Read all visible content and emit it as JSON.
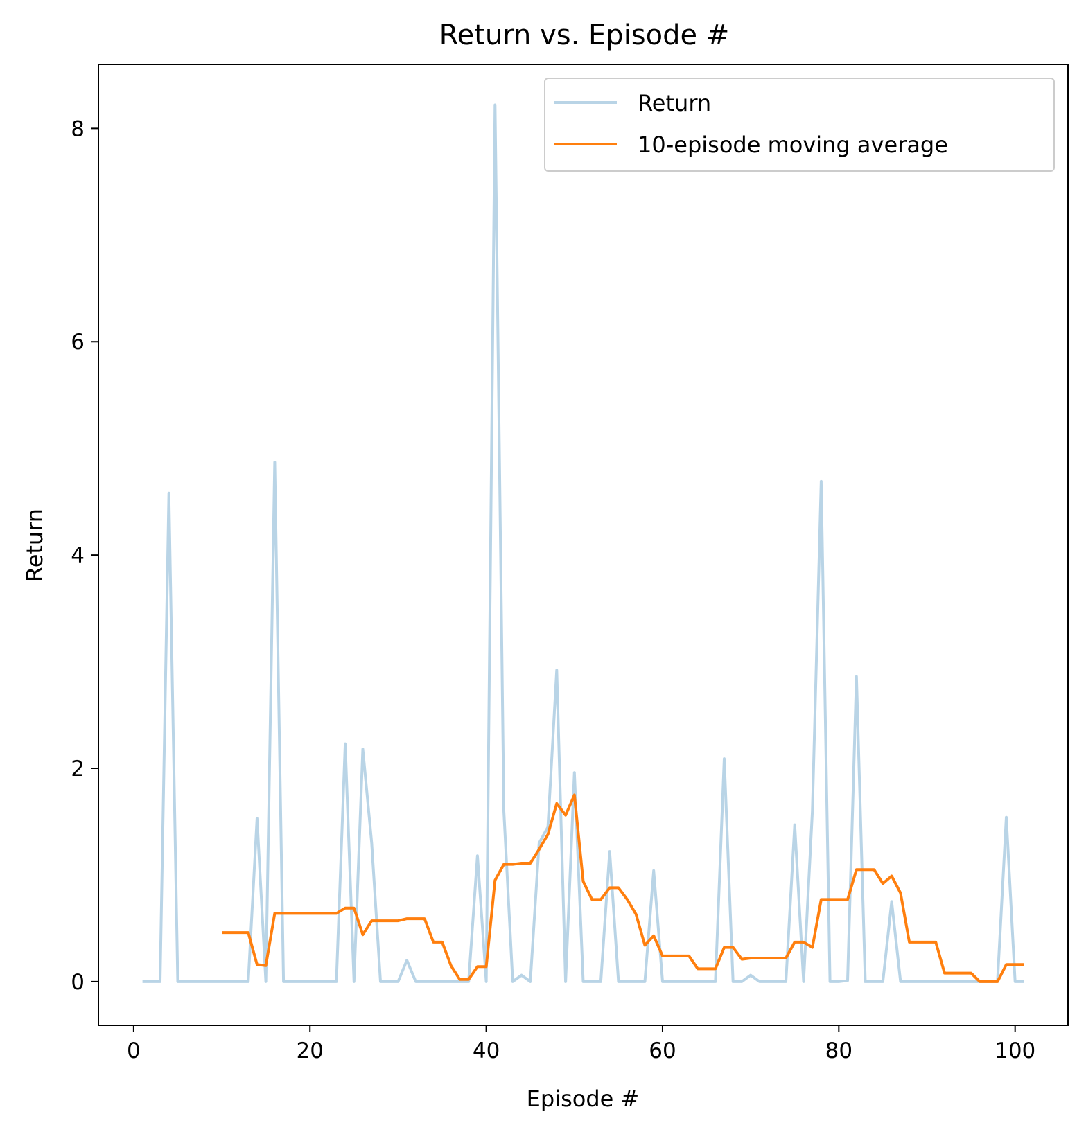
{
  "chart_data": {
    "type": "line",
    "title": "Return vs. Episode #",
    "xlabel": "Episode #",
    "ylabel": "Return",
    "xlim": [
      -4,
      106
    ],
    "ylim": [
      -0.41,
      8.6
    ],
    "xticks": [
      0,
      20,
      40,
      60,
      80,
      100
    ],
    "yticks": [
      0,
      2,
      4,
      6,
      8
    ],
    "grid": false,
    "legend_position": "top-right",
    "series": [
      {
        "name": "Return",
        "color": "#b9d4e6",
        "x": [
          1,
          2,
          3,
          4,
          5,
          6,
          7,
          8,
          9,
          10,
          11,
          12,
          13,
          14,
          15,
          16,
          17,
          18,
          19,
          20,
          21,
          22,
          23,
          24,
          25,
          26,
          27,
          28,
          29,
          30,
          31,
          32,
          33,
          34,
          35,
          36,
          37,
          38,
          39,
          40,
          41,
          42,
          43,
          44,
          45,
          46,
          47,
          48,
          49,
          50,
          51,
          52,
          53,
          54,
          55,
          56,
          57,
          58,
          59,
          60,
          61,
          62,
          63,
          64,
          65,
          66,
          67,
          68,
          69,
          70,
          71,
          72,
          73,
          74,
          75,
          76,
          77,
          78,
          79,
          80,
          81,
          82,
          83,
          84,
          85,
          86,
          87,
          88,
          89,
          90,
          91,
          92,
          93,
          94,
          95,
          96,
          97,
          98,
          99,
          100,
          101
        ],
        "values": [
          0,
          0,
          0,
          4.58,
          0,
          0,
          0,
          0,
          0,
          0,
          0,
          0,
          0,
          1.53,
          0,
          4.87,
          0,
          0,
          0,
          0,
          0,
          0,
          0,
          2.23,
          0,
          2.18,
          1.3,
          0,
          0,
          0,
          0.2,
          0,
          0,
          0,
          0,
          0,
          0,
          0,
          1.18,
          0,
          8.22,
          1.6,
          0,
          0.06,
          0,
          1.3,
          1.45,
          2.92,
          0,
          1.96,
          0,
          0,
          0,
          1.22,
          0,
          0,
          0,
          0,
          1.04,
          0,
          0,
          0,
          0,
          0,
          0,
          0,
          2.09,
          0,
          0,
          0.06,
          0,
          0,
          0,
          0,
          1.47,
          0,
          1.6,
          4.69,
          0,
          0,
          0.01,
          2.86,
          0,
          0,
          0,
          0.75,
          0,
          0,
          0,
          0,
          0,
          0,
          0,
          0,
          0,
          0,
          0,
          0,
          1.54,
          0,
          0
        ]
      },
      {
        "name": "10-episode moving average",
        "color": "#ff7f0e",
        "x": [
          10,
          11,
          12,
          13,
          14,
          15,
          16,
          17,
          18,
          19,
          20,
          21,
          22,
          23,
          24,
          25,
          26,
          27,
          28,
          29,
          30,
          31,
          32,
          33,
          34,
          35,
          36,
          37,
          38,
          39,
          40,
          41,
          42,
          43,
          44,
          45,
          46,
          47,
          48,
          49,
          50,
          51,
          52,
          53,
          54,
          55,
          56,
          57,
          58,
          59,
          60,
          61,
          62,
          63,
          64,
          65,
          66,
          67,
          68,
          69,
          70,
          71,
          72,
          73,
          74,
          75,
          76,
          77,
          78,
          79,
          80,
          81,
          82,
          83,
          84,
          85,
          86,
          87,
          88,
          89,
          90,
          91,
          92,
          93,
          94,
          95,
          96,
          97,
          98,
          99,
          100,
          101
        ],
        "values": [
          0.46,
          0.46,
          0.46,
          0.46,
          0.16,
          0.15,
          0.64,
          0.64,
          0.64,
          0.64,
          0.64,
          0.64,
          0.64,
          0.64,
          0.69,
          0.69,
          0.44,
          0.57,
          0.57,
          0.57,
          0.57,
          0.59,
          0.59,
          0.59,
          0.37,
          0.37,
          0.15,
          0.02,
          0.02,
          0.14,
          0.14,
          0.95,
          1.1,
          1.1,
          1.11,
          1.11,
          1.24,
          1.38,
          1.67,
          1.56,
          1.75,
          0.94,
          0.77,
          0.77,
          0.88,
          0.88,
          0.77,
          0.63,
          0.34,
          0.43,
          0.24,
          0.24,
          0.24,
          0.24,
          0.12,
          0.12,
          0.12,
          0.32,
          0.32,
          0.21,
          0.22,
          0.22,
          0.22,
          0.22,
          0.22,
          0.37,
          0.37,
          0.32,
          0.77,
          0.77,
          0.77,
          0.77,
          1.05,
          1.05,
          1.05,
          0.92,
          0.99,
          0.83,
          0.37,
          0.37,
          0.37,
          0.37,
          0.08,
          0.08,
          0.08,
          0.08,
          0,
          0,
          0,
          0.16,
          0.16,
          0.16
        ]
      }
    ]
  }
}
